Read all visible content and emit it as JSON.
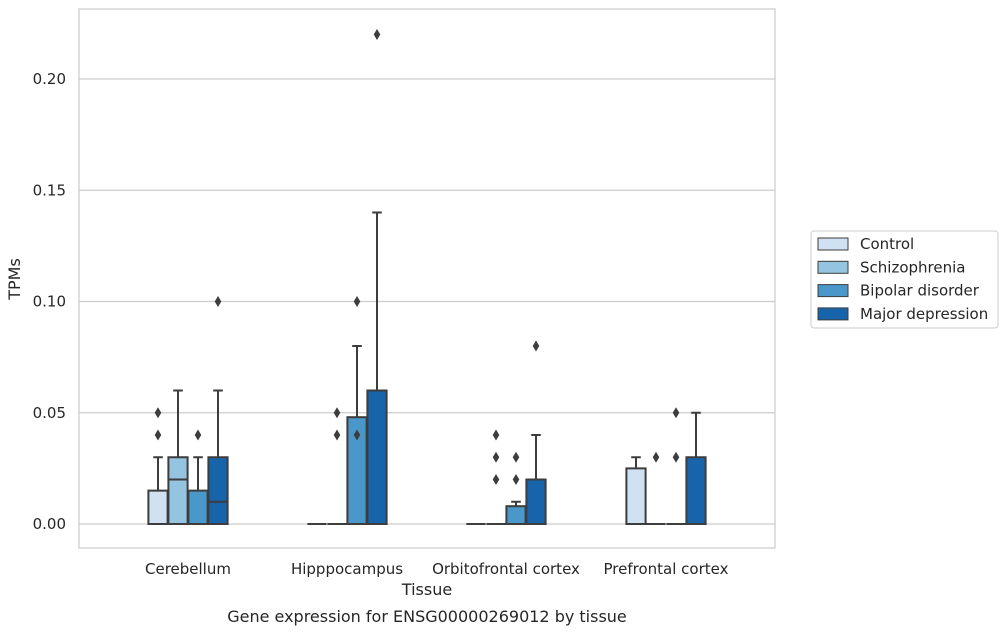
{
  "chart_data": {
    "type": "box",
    "xlabel": "Tissue",
    "ylabel": "TPMs",
    "caption": "Gene expression for ENSG00000269012 by tissue",
    "ylim": [
      -0.011,
      0.232
    ],
    "yticks": [
      "0.00",
      "0.05",
      "0.10",
      "0.15",
      "0.20"
    ],
    "grid": "horizontal",
    "legend_position": "right",
    "categories": [
      "Cerebellum",
      "Hipppocampus",
      "Orbitofrontal cortex",
      "Prefrontal cortex"
    ],
    "series": [
      {
        "name": "Control",
        "color": "#d0e1f2",
        "boxes": [
          {
            "q1": 0.0,
            "median": 0.0,
            "q3": 0.015,
            "whislo": 0.0,
            "whishi": 0.03,
            "fliers": [
              0.04,
              0.05
            ]
          },
          {
            "q1": 0.0,
            "median": 0.0,
            "q3": 0.0,
            "whislo": 0.0,
            "whishi": 0.0,
            "fliers": []
          },
          {
            "q1": 0.0,
            "median": 0.0,
            "q3": 0.0,
            "whislo": 0.0,
            "whishi": 0.0,
            "fliers": []
          },
          {
            "q1": 0.0,
            "median": 0.0,
            "q3": 0.025,
            "whislo": 0.0,
            "whishi": 0.03,
            "fliers": []
          }
        ]
      },
      {
        "name": "Schizophrenia",
        "color": "#94c4df",
        "boxes": [
          {
            "q1": 0.0,
            "median": 0.02,
            "q3": 0.03,
            "whislo": 0.0,
            "whishi": 0.06,
            "fliers": []
          },
          {
            "q1": 0.0,
            "median": 0.0,
            "q3": 0.0,
            "whislo": 0.0,
            "whishi": 0.0,
            "fliers": [
              0.04,
              0.05
            ]
          },
          {
            "q1": 0.0,
            "median": 0.0,
            "q3": 0.0,
            "whislo": 0.0,
            "whishi": 0.0,
            "fliers": [
              0.02,
              0.03,
              0.04
            ]
          },
          {
            "q1": 0.0,
            "median": 0.0,
            "q3": 0.0,
            "whislo": 0.0,
            "whishi": 0.0,
            "fliers": [
              0.03
            ]
          }
        ]
      },
      {
        "name": "Bipolar disorder",
        "color": "#4a98c9",
        "boxes": [
          {
            "q1": 0.0,
            "median": 0.0,
            "q3": 0.015,
            "whislo": 0.0,
            "whishi": 0.03,
            "fliers": [
              0.04
            ]
          },
          {
            "q1": 0.0,
            "median": 0.0,
            "q3": 0.048,
            "whislo": 0.0,
            "whishi": 0.08,
            "fliers": [
              0.04,
              0.1
            ]
          },
          {
            "q1": 0.0,
            "median": 0.0,
            "q3": 0.008,
            "whislo": 0.0,
            "whishi": 0.01,
            "fliers": [
              0.02,
              0.03
            ]
          },
          {
            "q1": 0.0,
            "median": 0.0,
            "q3": 0.0,
            "whislo": 0.0,
            "whishi": 0.0,
            "fliers": [
              0.03,
              0.05
            ]
          }
        ]
      },
      {
        "name": "Major depression",
        "color": "#1764ab",
        "boxes": [
          {
            "q1": 0.0,
            "median": 0.01,
            "q3": 0.03,
            "whislo": 0.0,
            "whishi": 0.06,
            "fliers": [
              0.1
            ]
          },
          {
            "q1": 0.0,
            "median": 0.0,
            "q3": 0.06,
            "whislo": 0.0,
            "whishi": 0.14,
            "fliers": [
              0.22
            ]
          },
          {
            "q1": 0.0,
            "median": 0.0,
            "q3": 0.02,
            "whislo": 0.0,
            "whishi": 0.04,
            "fliers": [
              0.08
            ]
          },
          {
            "q1": 0.0,
            "median": 0.0,
            "q3": 0.03,
            "whislo": 0.0,
            "whishi": 0.05,
            "fliers": []
          }
        ]
      }
    ]
  }
}
